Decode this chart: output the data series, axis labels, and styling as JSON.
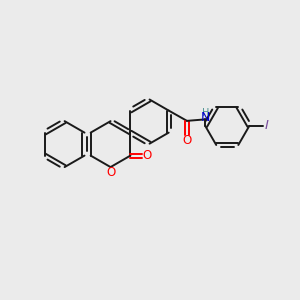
{
  "background_color": "#ebebeb",
  "bond_color": "#1a1a1a",
  "oxygen_color": "#ff0000",
  "nitrogen_color": "#0000cc",
  "iodine_color": "#7a4f9e",
  "nh_color": "#4a9090",
  "figsize": [
    3.0,
    3.0
  ],
  "dpi": 100,
  "xlim": [
    0,
    10
  ],
  "ylim": [
    0,
    10
  ]
}
